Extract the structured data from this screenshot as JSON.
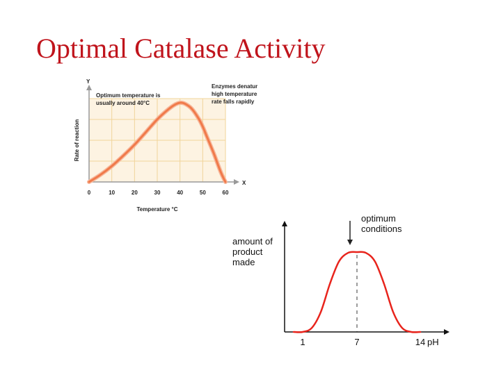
{
  "slide": {
    "title": "Optimal Catalase Activity"
  },
  "chart_data": [
    {
      "type": "line",
      "title": "",
      "xlabel": "Temperature °C",
      "ylabel": "Rate of reaction",
      "x_axis_letter": "X",
      "y_axis_letter": "Y",
      "xlim": [
        0,
        60
      ],
      "ylim": [
        0,
        100
      ],
      "x_ticks": [
        "0",
        "10",
        "20",
        "30",
        "40",
        "50",
        "60"
      ],
      "grid": true,
      "annotations": [
        {
          "lines": [
            "Optimum temperature is",
            "usually around 40°C"
          ]
        },
        {
          "lines": [
            "Enzymes denature at",
            "high temperatures so",
            "rate falls rapidly"
          ]
        }
      ],
      "series": [
        {
          "color": "#f07a4a",
          "x": [
            0,
            5,
            10,
            15,
            20,
            25,
            30,
            35,
            38,
            40,
            42,
            45,
            48,
            50,
            52,
            55,
            58,
            60
          ],
          "y": [
            0,
            9,
            20,
            33,
            47,
            63,
            79,
            92,
            98,
            100,
            99,
            93,
            81,
            70,
            56,
            35,
            12,
            0
          ]
        }
      ]
    },
    {
      "type": "line",
      "title": "",
      "ylabel_lines": [
        "amount of",
        "product",
        "made"
      ],
      "xlabel": "pH",
      "x_ticks": [
        "1",
        "7",
        "14"
      ],
      "xlim": [
        -1,
        17
      ],
      "ylim": [
        0,
        100
      ],
      "grid": false,
      "annotations": [
        {
          "lines": [
            "optimum",
            "conditions"
          ]
        }
      ],
      "series": [
        {
          "color": "#e8241c",
          "x": [
            0,
            1,
            2,
            3,
            4,
            5,
            6,
            7,
            8,
            9,
            10,
            11,
            12,
            13,
            14
          ],
          "y": [
            0,
            0,
            5,
            25,
            60,
            88,
            99,
            100,
            99,
            88,
            60,
            25,
            5,
            0,
            0
          ]
        }
      ]
    }
  ]
}
